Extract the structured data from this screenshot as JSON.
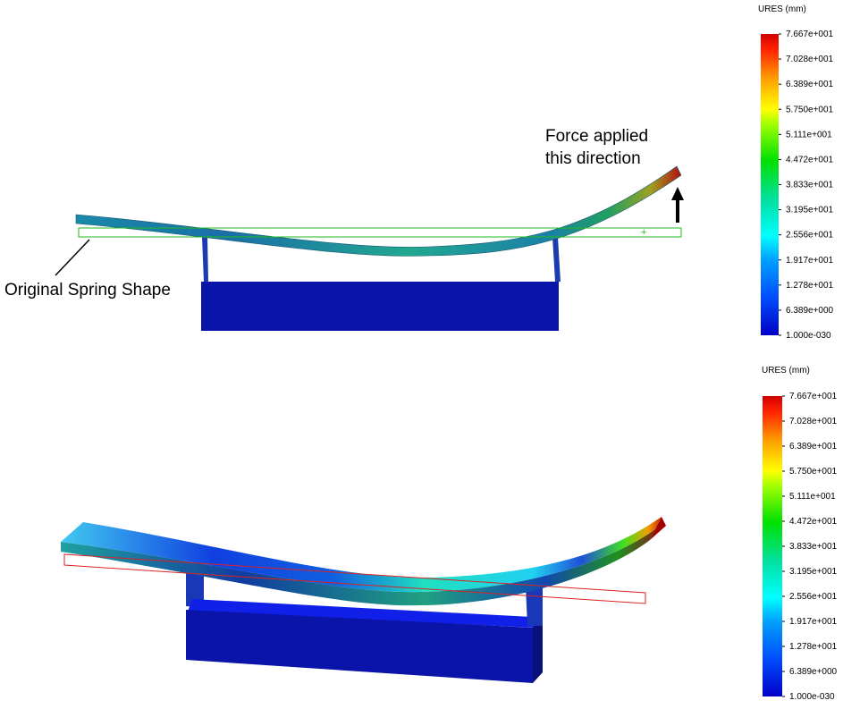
{
  "annotations": {
    "force_line1": "Force applied",
    "force_line2": "this direction",
    "original_shape": "Original Spring Shape"
  },
  "legends": [
    {
      "title": "URES (mm)",
      "ticks": [
        "7.667e+001",
        "7.028e+001",
        "6.389e+001",
        "5.750e+001",
        "5.111e+001",
        "4.472e+001",
        "3.833e+001",
        "3.195e+001",
        "2.556e+001",
        "1.917e+001",
        "1.278e+001",
        "6.389e+000",
        "1.000e-030"
      ]
    },
    {
      "title": "URES (mm)",
      "ticks": [
        "7.667e+001",
        "7.028e+001",
        "6.389e+001",
        "5.750e+001",
        "5.111e+001",
        "4.472e+001",
        "3.833e+001",
        "3.195e+001",
        "2.556e+001",
        "1.917e+001",
        "1.278e+001",
        "6.389e+000",
        "1.000e-030"
      ]
    }
  ],
  "colormap": [
    "#0000ff",
    "#0080ff",
    "#00ffff",
    "#00ff40",
    "#00ff00",
    "#ffff00",
    "#ff8000",
    "#ff0000"
  ],
  "colors": {
    "original_shape_front": "#22bb22",
    "original_shape_iso": "#dd2222",
    "fixture": "#0a14a8"
  }
}
